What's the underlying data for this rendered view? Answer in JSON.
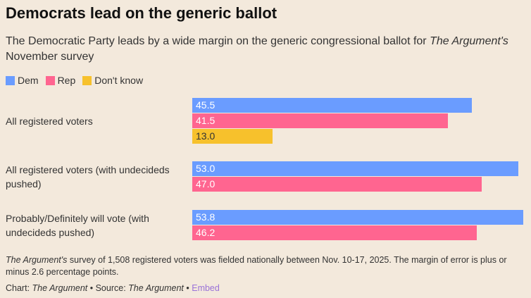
{
  "title": "Democrats lead on the generic ballot",
  "subtitle_pre": "The Democratic Party leads by a wide margin on the generic congressional ballot for ",
  "subtitle_em": "The Argument's",
  "subtitle_post": " November survey",
  "chart_data": {
    "type": "bar",
    "orientation": "horizontal",
    "categories": [
      "All registered voters",
      "All registered voters (with undecideds pushed)",
      "Probably/Definitely will vote (with undecideds pushed)"
    ],
    "series": [
      {
        "name": "Dem",
        "color": "#6a9cff",
        "values": [
          45.5,
          53.0,
          53.8
        ]
      },
      {
        "name": "Rep",
        "color": "#ff6590",
        "values": [
          41.5,
          47.0,
          46.2
        ]
      },
      {
        "name": "Don't know",
        "color": "#f7c12c",
        "values": [
          13.0,
          null,
          null
        ]
      }
    ],
    "labels": [
      [
        "45.5",
        "41.5",
        "13.0"
      ],
      [
        "53.0",
        "47.0"
      ],
      [
        "53.8",
        "46.2"
      ]
    ],
    "legend": "top-left",
    "grid": false
  },
  "note_em": "The Argument's",
  "note": " survey of 1,508 registered voters was fielded nationally between Nov. 10-17, 2025. The margin of error is plus or minus 2.6 percentage points.",
  "source": {
    "chart_label": "Chart: ",
    "chart": "The Argument",
    "sep": " • ",
    "source_label": "Source: ",
    "source": "The Argument",
    "embed": "Embed"
  }
}
